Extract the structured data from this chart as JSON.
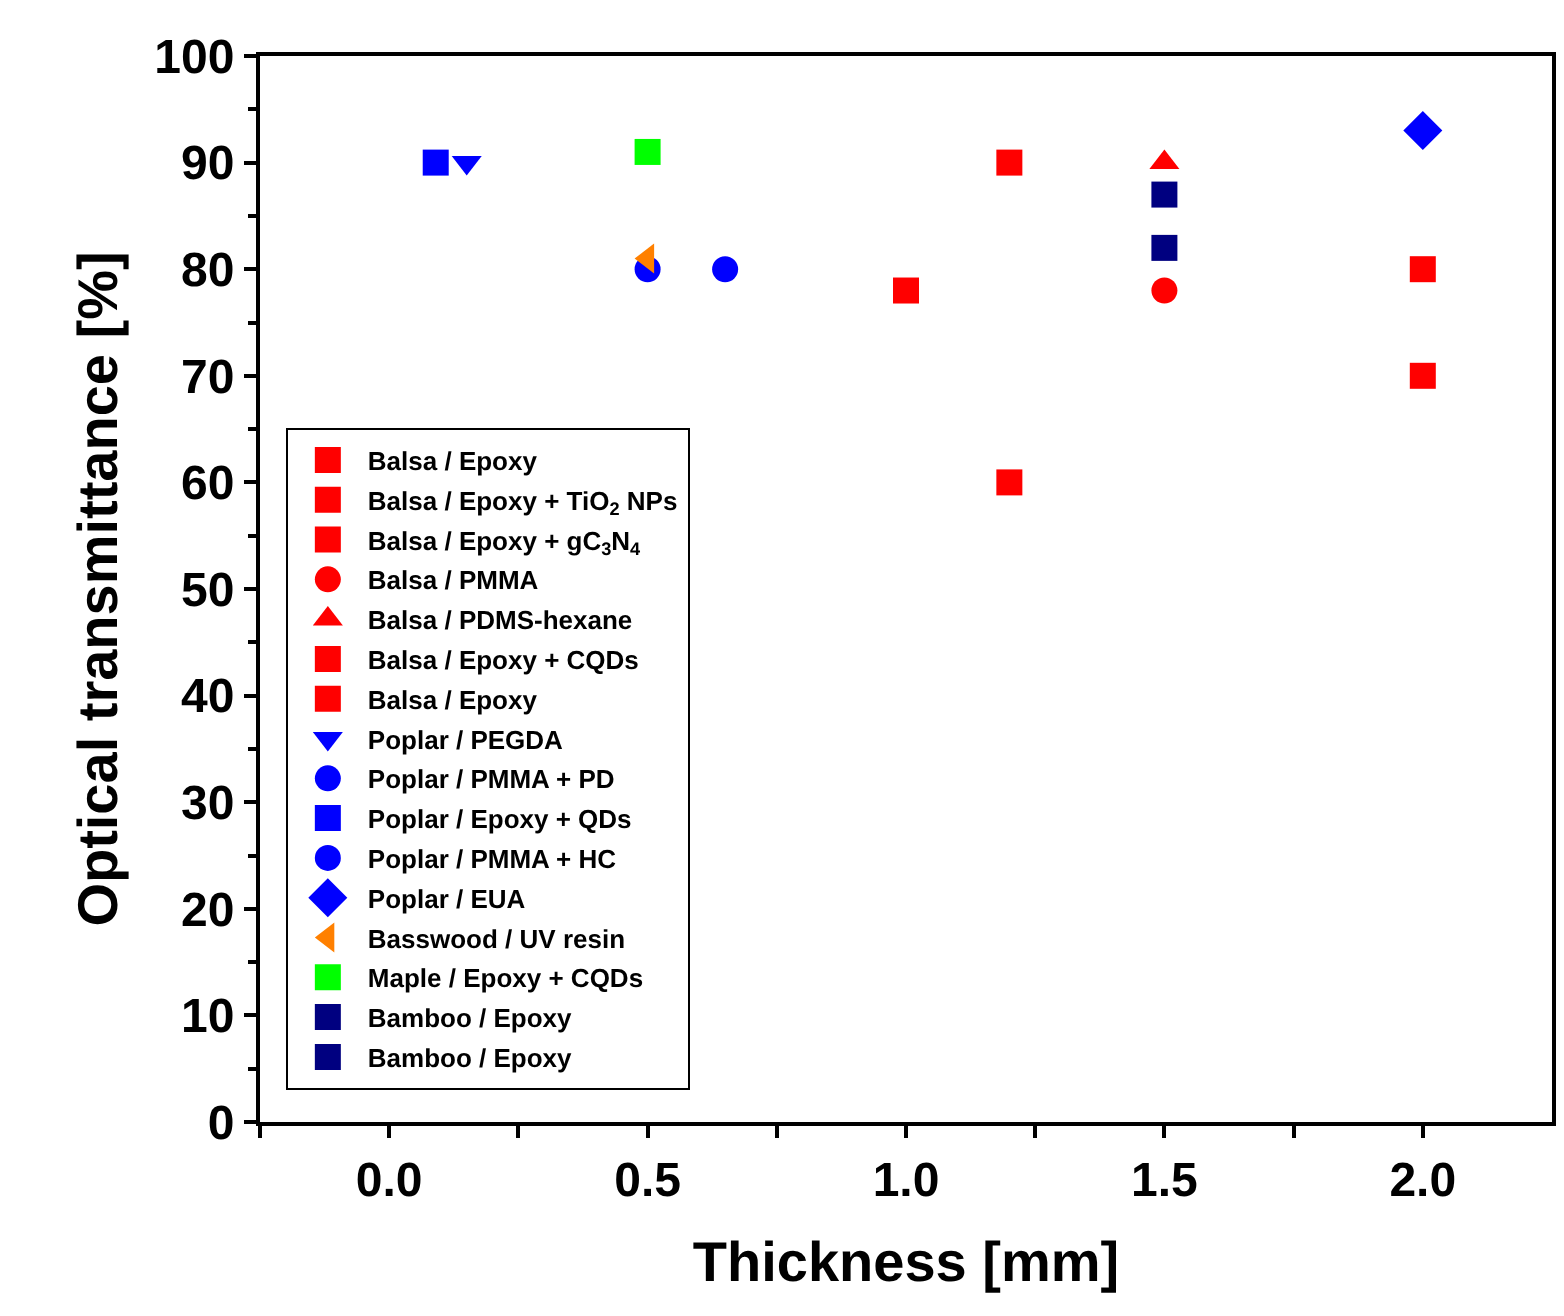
{
  "chart_data": {
    "type": "scatter",
    "xlabel": "Thickness [mm]",
    "ylabel": "Optical transmittance [%]",
    "xlim": [
      -0.25,
      2.25
    ],
    "xticks": [
      {
        "value": -0.25,
        "label": null
      },
      {
        "value": 0,
        "label": "0.0"
      },
      {
        "value": 0.25,
        "label": null
      },
      {
        "value": 0.5,
        "label": "0.5"
      },
      {
        "value": 0.75,
        "label": null
      },
      {
        "value": 1,
        "label": "1.0"
      },
      {
        "value": 1.25,
        "label": null
      },
      {
        "value": 1.5,
        "label": "1.5"
      },
      {
        "value": 1.75,
        "label": null
      },
      {
        "value": 2,
        "label": "2.0"
      }
    ],
    "ylim": [
      0,
      100
    ],
    "yticks": [
      0,
      10,
      20,
      30,
      40,
      50,
      60,
      70,
      80,
      90,
      100
    ],
    "legend": "bottom left",
    "series": [
      {
        "name": "Balsa / Epoxy",
        "color": "#ff0000",
        "marker": "square",
        "x": [
          1.2
        ],
        "values": [
          60
        ]
      },
      {
        "name": "Balsa / Epoxy + TiO$_{2}$ NPs",
        "color": "#ff0000",
        "marker": "square",
        "x": [
          1.2
        ],
        "values": [
          90
        ]
      },
      {
        "name": "Balsa / Epoxy + gC$_{3}$N$_{4}$",
        "color": "#ff0000",
        "marker": "square",
        "x": [
          2.0
        ],
        "values": [
          80
        ]
      },
      {
        "name": "Balsa / PMMA",
        "color": "#ff0000",
        "marker": "circle",
        "x": [
          1.5
        ],
        "values": [
          78
        ]
      },
      {
        "name": "Balsa / PDMS-hexane",
        "color": "#ff0000",
        "marker": "triangle",
        "x": [
          1.5
        ],
        "values": [
          90
        ]
      },
      {
        "name": "Balsa / Epoxy + CQDs",
        "color": "#ff0000",
        "marker": "square",
        "x": [
          1.0
        ],
        "values": [
          78
        ]
      },
      {
        "name": "Balsa / Epoxy",
        "color": "#ff0000",
        "marker": "square",
        "x": [
          2.0
        ],
        "values": [
          70
        ]
      },
      {
        "name": "Poplar / PEGDA",
        "color": "#0000ff",
        "marker": "triangle-down",
        "x": [
          0.15
        ],
        "values": [
          90
        ]
      },
      {
        "name": "Poplar / PMMA + PD",
        "color": "#0000ff",
        "marker": "circle",
        "x": [
          0.65
        ],
        "values": [
          80
        ]
      },
      {
        "name": "Poplar / Epoxy + QDs",
        "color": "#0000ff",
        "marker": "square",
        "x": [
          0.09
        ],
        "values": [
          90
        ]
      },
      {
        "name": "Poplar / PMMA + HC",
        "color": "#0000ff",
        "marker": "circle",
        "x": [
          0.5
        ],
        "values": [
          80
        ]
      },
      {
        "name": "Poplar / EUA",
        "color": "#0000ff",
        "marker": "diamond",
        "x": [
          2.0
        ],
        "values": [
          93
        ]
      },
      {
        "name": "Basswood / UV resin",
        "color": "#ff8000",
        "marker": "triangle-left",
        "x": [
          0.5
        ],
        "values": [
          81
        ]
      },
      {
        "name": "Maple / Epoxy + CQDs",
        "color": "#00ff00",
        "marker": "square",
        "x": [
          0.5
        ],
        "values": [
          91
        ]
      },
      {
        "name": "Bamboo / Epoxy",
        "color": "#000080",
        "marker": "square",
        "x": [
          1.5
        ],
        "values": [
          87
        ]
      },
      {
        "name": "Bamboo / Epoxy",
        "color": "#000080",
        "marker": "square",
        "x": [
          1.5
        ],
        "values": [
          82
        ]
      }
    ]
  }
}
